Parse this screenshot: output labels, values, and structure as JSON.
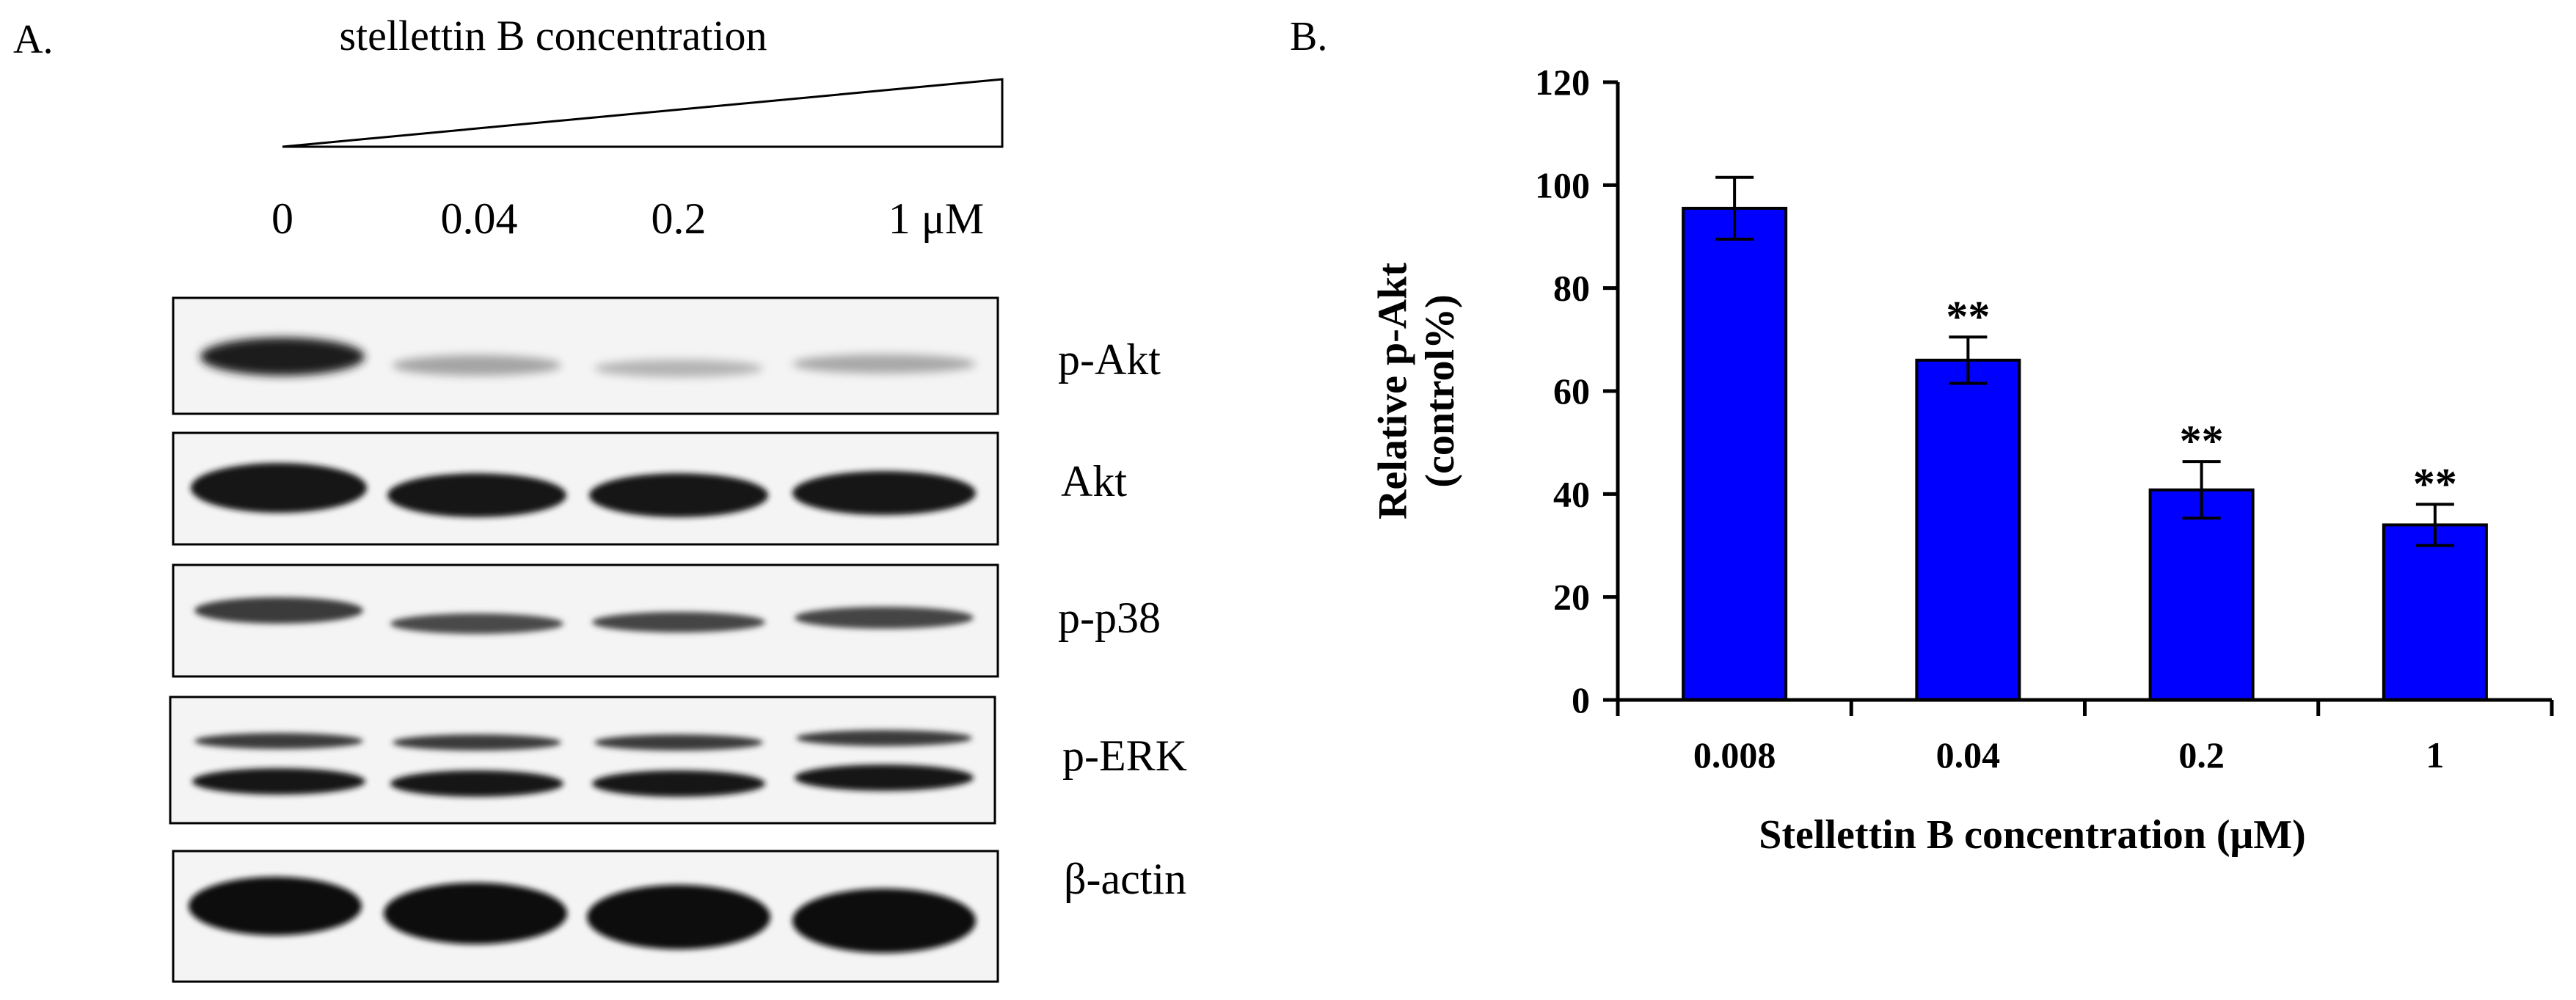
{
  "panel_a": {
    "label": "A.",
    "title": "stellettin B concentration",
    "concentrations": [
      "0",
      "0.04",
      "0.2",
      "1 μM"
    ],
    "bands": [
      "p-Akt",
      "Akt",
      "p-p38",
      "p-ERK",
      "β-actin"
    ]
  },
  "panel_b": {
    "label": "B."
  },
  "chart_data": {
    "type": "bar",
    "categories": [
      "0.008",
      "0.04",
      "0.2",
      "1"
    ],
    "values": [
      95.5,
      66,
      40.8,
      34
    ],
    "errors": [
      6,
      4.5,
      5.5,
      4
    ],
    "annotations": [
      "",
      "**",
      "**",
      "**"
    ],
    "ylabel": "Relative p-Akt (control%)",
    "xlabel": "Stellettin B concentration (μM)",
    "ylim": [
      0,
      120
    ],
    "yticks": [
      0,
      20,
      40,
      60,
      80,
      100,
      120
    ],
    "bar_color": "#0000ff",
    "grid": false,
    "legend": "none"
  }
}
